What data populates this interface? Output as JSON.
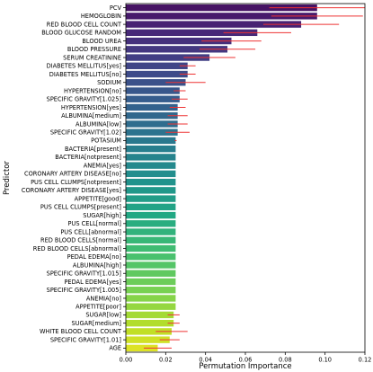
{
  "chart_data": {
    "type": "bar",
    "orientation": "horizontal",
    "xlabel": "Permutation Importance",
    "ylabel": "Predictor",
    "xlim": [
      0.0,
      0.12
    ],
    "x_ticks": [
      0.0,
      0.02,
      0.04,
      0.06,
      0.08,
      0.1,
      0.12
    ],
    "x_tick_labels": [
      "0.00",
      "0.02",
      "0.04",
      "0.06",
      "0.08",
      "0.10",
      "0.12"
    ],
    "grid": false,
    "legend": "none",
    "colormap": "viridis",
    "error_bar_color": "#ee3333",
    "categories": [
      "PCV",
      "HEMOGLOBIN",
      "RED BLOOD CELL COUNT",
      "BLOOD GLUCOSE RANDOM",
      "BLOOD UREA",
      "BLOOD PRESSURE",
      "SERUM CREATININE",
      "DIABETES MELLITUS[yes]",
      "DIABETES MELLITUS[no]",
      "SODIUM",
      "HYPERTENSION[no]",
      "SPECIFIC GRAVITY[1.025]",
      "HYPERTENSION[yes]",
      "ALBUMINA[medium]",
      "ALBUMINA[low]",
      "SPECIFIC GRAVITY[1.02]",
      "POTASIUM",
      "BACTERIA[present]",
      "BACTERIA[notpresent]",
      "ANEMIA[yes]",
      "CORONARY ARTERY DISEASE[no]",
      "PUS CELL CLUMPS[notpresent]",
      "CORONARY ARTERY DISEASE[yes]",
      "APPETITE[good]",
      "PUS CELL CLUMPS[present]",
      "SUGAR[high]",
      "PUS CELL[normal]",
      "PUS CELL[abnormal]",
      "RED BLOOD CELLS[normal]",
      "RED BLOOD CELLS[abnormal]",
      "PEDAL EDEMA[no]",
      "ALBUMINA[high]",
      "SPECIFIC GRAVITY[1.015]",
      "PEDAL EDEMA[yes]",
      "SPECIFIC GRAVITY[1.005]",
      "ANEMIA[no]",
      "APPETITE[poor]",
      "SUGAR[low]",
      "SUGAR[medium]",
      "WHITE BLOOD CELL COUNT",
      "SPECIFIC GRAVITY[1.01]",
      "AGE"
    ],
    "values": [
      0.096,
      0.096,
      0.088,
      0.066,
      0.053,
      0.051,
      0.042,
      0.031,
      0.031,
      0.03,
      0.027,
      0.027,
      0.026,
      0.026,
      0.026,
      0.026,
      0.025,
      0.025,
      0.025,
      0.025,
      0.025,
      0.025,
      0.025,
      0.025,
      0.025,
      0.025,
      0.025,
      0.025,
      0.025,
      0.025,
      0.025,
      0.025,
      0.025,
      0.025,
      0.025,
      0.025,
      0.025,
      0.024,
      0.024,
      0.023,
      0.022,
      0.016
    ],
    "errors": [
      0.024,
      0.023,
      0.019,
      0.017,
      0.015,
      0.014,
      0.013,
      0.004,
      0.004,
      0.01,
      0.003,
      0.004,
      0.004,
      0.005,
      0.005,
      0.006,
      0.0005,
      0,
      0,
      0,
      0,
      0,
      0,
      0,
      0,
      0,
      0,
      0,
      0,
      0,
      0,
      0,
      0,
      0,
      0,
      0,
      0,
      0.003,
      0.003,
      0.008,
      0.005,
      0.007
    ]
  }
}
